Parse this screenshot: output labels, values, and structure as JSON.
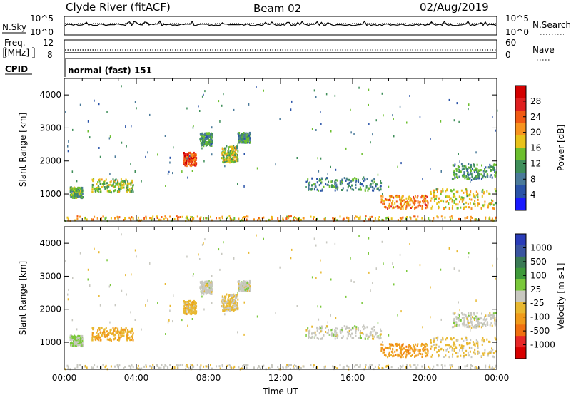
{
  "header": {
    "site": "Clyde River (fitACF)",
    "beam": "Beam 02",
    "date": "02/Aug/2019"
  },
  "panels": {
    "nsky_label": "N.Sky",
    "nsearch_label": "N.Search",
    "freq_label_1": "Freq.",
    "freq_label_2": "[MHz]",
    "nave_label": "Nave",
    "cpid_label": "CPID",
    "cpid_text": "normal (fast) 151",
    "noise_ticks": [
      "10^5",
      "10^0"
    ],
    "freq_ticks": [
      "12",
      "8"
    ],
    "nave_ticks": [
      "60",
      "0"
    ]
  },
  "colors": {
    "power_scale": [
      "#1a1aff",
      "#2a53a8",
      "#4a7a9a",
      "#3f8f5a",
      "#6cbf2e",
      "#e8c21a",
      "#f7931e",
      "#f15a13",
      "#e02020",
      "#d40000"
    ],
    "velocity_scale": [
      "#2a3cb8",
      "#3a55a0",
      "#3a7a55",
      "#3f9a3a",
      "#7ac83a",
      "#c8c8c0",
      "#e8b830",
      "#f09a1a",
      "#f07010",
      "#e82828",
      "#d80000"
    ]
  },
  "chart_data": [
    {
      "type": "heatmap",
      "name": "Power",
      "xlabel": "Time UT",
      "ylabel": "Slant Range [km]",
      "x_ticks": [
        "00:00",
        "04:00",
        "08:00",
        "12:00",
        "16:00",
        "20:00",
        "00:00"
      ],
      "y_ticks": [
        1000,
        2000,
        3000,
        4000
      ],
      "xlim": [
        0,
        24
      ],
      "ylim": [
        180,
        4500
      ],
      "colorbar": {
        "label": "Power [dB]",
        "ticks": [
          4,
          8,
          12,
          16,
          20,
          24,
          28
        ],
        "range": [
          0,
          30
        ]
      },
      "echo_regions": [
        {
          "t": [
            0.3,
            1.0
          ],
          "range": [
            880,
            1200
          ],
          "value": 12
        },
        {
          "t": [
            1.5,
            3.8
          ],
          "range": [
            1050,
            1450
          ],
          "value": 14
        },
        {
          "t": [
            6.6,
            7.3
          ],
          "range": [
            1850,
            2250
          ],
          "value": 24
        },
        {
          "t": [
            7.5,
            8.2
          ],
          "range": [
            2450,
            2850
          ],
          "value": 10
        },
        {
          "t": [
            8.7,
            9.6
          ],
          "range": [
            1950,
            2450
          ],
          "value": 14
        },
        {
          "t": [
            9.6,
            10.3
          ],
          "range": [
            2550,
            2850
          ],
          "value": 10
        },
        {
          "t": [
            13.4,
            17.6
          ],
          "range": [
            1100,
            1500
          ],
          "value": 9
        },
        {
          "t": [
            17.5,
            20.3
          ],
          "range": [
            550,
            950
          ],
          "value": 20
        },
        {
          "t": [
            20.3,
            23.9
          ],
          "range": [
            550,
            1150
          ],
          "value": 16
        },
        {
          "t": [
            21.5,
            23.9
          ],
          "range": [
            1450,
            1900
          ],
          "value": 10
        },
        {
          "t": [
            0.0,
            24.0
          ],
          "range": [
            180,
            320
          ],
          "value": 18
        }
      ]
    },
    {
      "type": "heatmap",
      "name": "Velocity",
      "xlabel": "Time UT",
      "ylabel": "Slant Range [km]",
      "x_ticks": [
        "00:00",
        "04:00",
        "08:00",
        "12:00",
        "16:00",
        "20:00",
        "00:00"
      ],
      "y_ticks": [
        1000,
        2000,
        3000,
        4000
      ],
      "xlim": [
        0,
        24
      ],
      "ylim": [
        180,
        4500
      ],
      "colorbar": {
        "label": "Velocity [m s-1]",
        "ticks": [
          "1000",
          "500",
          "100",
          "25",
          "-25",
          "-100",
          "-500",
          "-1000"
        ],
        "range": [
          -1000,
          1000
        ]
      },
      "echo_regions": [
        {
          "t": [
            0.3,
            1.0
          ],
          "range": [
            880,
            1200
          ],
          "value": 100
        },
        {
          "t": [
            1.5,
            3.8
          ],
          "range": [
            1050,
            1450
          ],
          "value": -300
        },
        {
          "t": [
            6.6,
            7.3
          ],
          "range": [
            1850,
            2250
          ],
          "value": -200
        },
        {
          "t": [
            7.5,
            8.2
          ],
          "range": [
            2450,
            2850
          ],
          "value": 0
        },
        {
          "t": [
            8.7,
            9.6
          ],
          "range": [
            1950,
            2450
          ],
          "value": -150
        },
        {
          "t": [
            9.6,
            10.3
          ],
          "range": [
            2550,
            2850
          ],
          "value": 0
        },
        {
          "t": [
            13.4,
            17.6
          ],
          "range": [
            1100,
            1500
          ],
          "value": 0
        },
        {
          "t": [
            17.5,
            20.3
          ],
          "range": [
            550,
            950
          ],
          "value": -400
        },
        {
          "t": [
            20.3,
            23.9
          ],
          "range": [
            550,
            1150
          ],
          "value": -150
        },
        {
          "t": [
            21.5,
            23.9
          ],
          "range": [
            1450,
            1900
          ],
          "value": 0
        },
        {
          "t": [
            0.0,
            24.0
          ],
          "range": [
            180,
            320
          ],
          "value": -50
        }
      ]
    }
  ]
}
